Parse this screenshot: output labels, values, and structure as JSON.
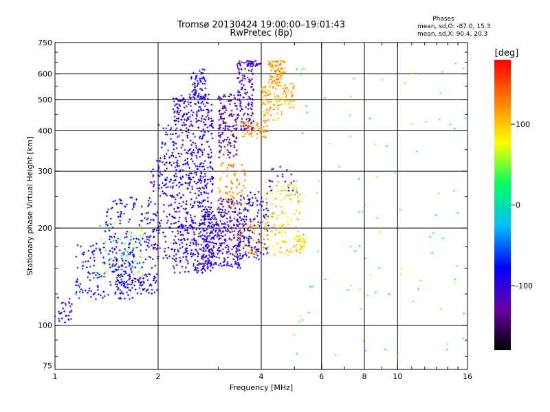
{
  "chart_data": {
    "type": "scatter",
    "title": "Tromsø 20130424 19:00:00–19:01:43",
    "subtitle": "RwPretec (8p)",
    "stats": {
      "heading": "Phases",
      "line_o": "mean, sd,O: -87.0, 15.3",
      "line_x": "mean, sd,X:  90.4, 20.3"
    },
    "xlabel": "Frequency [MHz]",
    "ylabel": "Stationary phase Virtual Height [km]",
    "x_scale": "log",
    "y_scale": "log",
    "xlim": [
      1,
      16
    ],
    "ylim": [
      73,
      750
    ],
    "x_ticks": [
      1,
      2,
      4,
      6,
      8,
      10,
      16
    ],
    "x_tick_labels": [
      "1",
      "2",
      "4",
      "6",
      "8",
      "10",
      "16"
    ],
    "y_ticks": [
      75,
      100,
      200,
      300,
      400,
      500,
      600,
      750
    ],
    "y_tick_labels": [
      "75",
      "100",
      "200",
      "300",
      "400",
      "500",
      "600",
      "750"
    ],
    "grid": true,
    "grid_x": [
      2,
      4,
      6,
      8,
      10
    ],
    "grid_y": [
      100,
      200,
      300,
      400,
      500,
      600
    ],
    "colorbar": {
      "title": "[deg]",
      "range": [
        -180,
        180
      ],
      "ticks": [
        100,
        0,
        -100
      ],
      "tick_labels": [
        "100",
        "0",
        "-100"
      ],
      "colors": [
        "#000000",
        "#6a00a8",
        "#0000ff",
        "#00c0ff",
        "#00ff60",
        "#ffff00",
        "#ff8000",
        "#ff0000"
      ]
    },
    "clusters": [
      {
        "f": [
          1.0,
          1.12
        ],
        "h": [
          100,
          125
        ],
        "phase": -95,
        "n": 30
      },
      {
        "f": [
          1.15,
          1.7
        ],
        "h": [
          120,
          180
        ],
        "phase": -80,
        "n": 170
      },
      {
        "f": [
          1.3,
          1.85
        ],
        "h": [
          140,
          210
        ],
        "phase": 40,
        "n": 45
      },
      {
        "f": [
          1.5,
          2.0
        ],
        "h": [
          125,
          145
        ],
        "phase": -90,
        "n": 90
      },
      {
        "f": [
          1.4,
          2.0
        ],
        "h": [
          150,
          250
        ],
        "phase": -85,
        "n": 150
      },
      {
        "f": [
          1.9,
          2.2
        ],
        "h": [
          160,
          330
        ],
        "phase": -100,
        "n": 90
      },
      {
        "f": [
          2.0,
          2.2
        ],
        "h": [
          250,
          420
        ],
        "phase": -80,
        "n": 45
      },
      {
        "f": [
          2.2,
          2.9
        ],
        "h": [
          145,
          520
        ],
        "phase": -95,
        "n": 700
      },
      {
        "f": [
          2.5,
          2.75
        ],
        "h": [
          500,
          630
        ],
        "phase": -90,
        "n": 60
      },
      {
        "f": [
          2.7,
          3.0
        ],
        "h": [
          150,
          230
        ],
        "phase": -100,
        "n": 130
      },
      {
        "f": [
          3.0,
          3.5
        ],
        "h": [
          150,
          250
        ],
        "phase": -110,
        "n": 200
      },
      {
        "f": [
          3.0,
          3.4
        ],
        "h": [
          330,
          520
        ],
        "phase": -120,
        "n": 140
      },
      {
        "f": [
          3.0,
          3.6
        ],
        "h": [
          230,
          320
        ],
        "phase": 120,
        "n": 75
      },
      {
        "f": [
          3.4,
          3.8
        ],
        "h": [
          400,
          660
        ],
        "phase": -110,
        "n": 140
      },
      {
        "f": [
          3.6,
          4.0
        ],
        "h": [
          630,
          660
        ],
        "phase": -110,
        "n": 25
      },
      {
        "f": [
          3.5,
          4.2
        ],
        "h": [
          380,
          430
        ],
        "phase": 120,
        "n": 60
      },
      {
        "f": [
          3.4,
          4.2
        ],
        "h": [
          160,
          260
        ],
        "phase": -90,
        "n": 160
      },
      {
        "f": [
          3.4,
          4.2
        ],
        "h": [
          165,
          210
        ],
        "phase": 120,
        "n": 60
      },
      {
        "f": [
          4.0,
          4.6
        ],
        "h": [
          430,
          560
        ],
        "phase": 110,
        "n": 80
      },
      {
        "f": [
          4.2,
          4.7
        ],
        "h": [
          560,
          660
        ],
        "phase": 115,
        "n": 80
      },
      {
        "f": [
          4.6,
          5.0
        ],
        "h": [
          470,
          560
        ],
        "phase": 110,
        "n": 40
      },
      {
        "f": [
          4.1,
          5.2
        ],
        "h": [
          165,
          280
        ],
        "phase": 100,
        "n": 120
      },
      {
        "f": [
          5.0,
          5.4
        ],
        "h": [
          170,
          190
        ],
        "phase": 90,
        "n": 30
      },
      {
        "f": [
          4.2,
          5.0
        ],
        "h": [
          260,
          310
        ],
        "phase": -100,
        "n": 20
      },
      {
        "f": [
          5.0,
          16.0
        ],
        "h": [
          80,
          650
        ],
        "phase": 40,
        "n": 95
      }
    ]
  }
}
